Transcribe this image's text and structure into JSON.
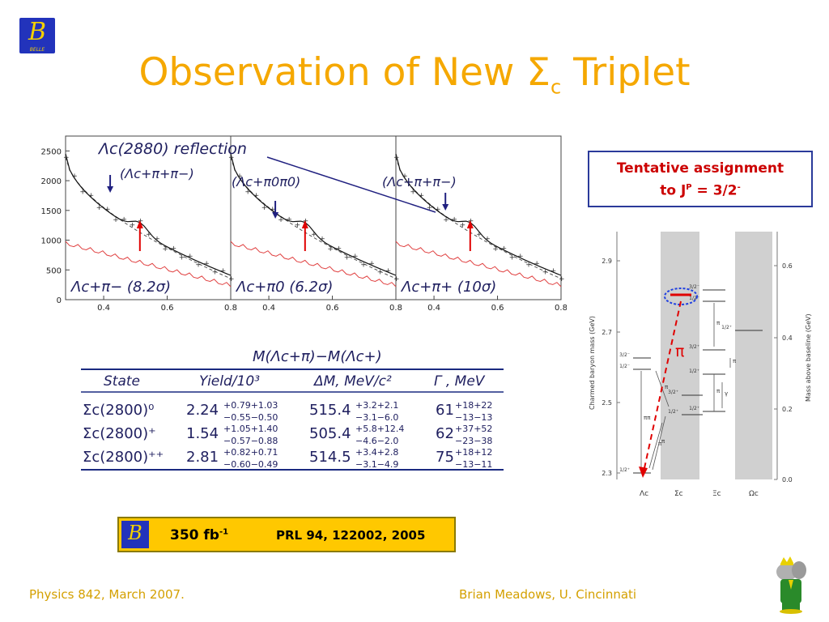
{
  "slide": {
    "title_main": "Observation of New Σ",
    "title_sub": "c",
    "title_tail": " Triplet",
    "logo_text": "BELLE",
    "footer_left": "Physics 842, March 2007.",
    "footer_right": "Brian Meadows, U. Cincinnati"
  },
  "plots": {
    "y_ticks": [
      "2500",
      "2000",
      "1500",
      "1000",
      "500",
      "0"
    ],
    "x_ticks": [
      "0.4",
      "0.6",
      "0.8"
    ],
    "reflection_label": "Λc(2880) reflection",
    "panels": [
      {
        "reflection_channel": "(Λc+π+π−)",
        "fit_label": "Λc+π− (8.2σ)"
      },
      {
        "reflection_channel": "(Λc+π0π0)",
        "fit_label": "Λc+π0 (6.2σ)"
      },
      {
        "reflection_channel": "(Λc+π+π−)",
        "fit_label": "Λc+π+ (10σ)"
      }
    ]
  },
  "table": {
    "header_title": "M(Λc+π)−M(Λc+)",
    "columns": [
      "State",
      "Yield/10³",
      "ΔM, MeV/c²",
      "Γ , MeV"
    ],
    "rows": [
      {
        "state": "Σc(2800)⁰",
        "yield": "2.24",
        "yield_up": "+0.79+1.03",
        "yield_dn": "−0.55−0.50",
        "dm": "515.4",
        "dm_up": "+3.2+2.1",
        "dm_dn": "−3.1−6.0",
        "gamma": "61",
        "gamma_up": "+18+22",
        "gamma_dn": "−13−13"
      },
      {
        "state": "Σc(2800)⁺",
        "yield": "1.54",
        "yield_up": "+1.05+1.40",
        "yield_dn": "−0.57−0.88",
        "dm": "505.4",
        "dm_up": "+5.8+12.4",
        "dm_dn": "−4.6−2.0",
        "gamma": "62",
        "gamma_up": "+37+52",
        "gamma_dn": "−23−38"
      },
      {
        "state": "Σc(2800)⁺⁺",
        "yield": "2.81",
        "yield_up": "+0.82+0.71",
        "yield_dn": "−0.60−0.49",
        "dm": "514.5",
        "dm_up": "+3.4+2.8",
        "dm_dn": "−3.1−4.9",
        "gamma": "75",
        "gamma_up": "+18+12",
        "gamma_dn": "−13−11"
      }
    ]
  },
  "assignment": {
    "line1": "Tentative assignment",
    "line2": "to J",
    "sup": "P",
    "line2_tail": " = 3/2",
    "sup2": "-"
  },
  "level_diagram": {
    "left_axis_label": "Charmed baryon mass  (GeV)",
    "right_axis_label": "Mass above baseline  (GeV)",
    "left_ticks": [
      "2.9",
      "2.7",
      "2.5",
      "2.3"
    ],
    "right_ticks": [
      "0.6",
      "0.4",
      "0.2",
      "0.0"
    ],
    "columns": [
      "Λc",
      "Σc",
      "Ξc",
      "Ωc"
    ],
    "pi_label": "π",
    "levels": [
      "3/2⁻",
      "1/2⁻",
      "3/2⁻",
      "1/2⁻",
      "3/2⁺",
      "1/2⁺",
      "1/2⁺",
      "3/2⁺",
      "1/2⁺",
      "3/2⁻",
      "1/2⁻",
      "1/2⁺"
    ],
    "transitions": [
      "π",
      "π",
      "π",
      "ππ",
      "π",
      "π",
      "γ",
      "π"
    ]
  },
  "banner": {
    "lumi": "350 fb",
    "lumi_sup": "-1",
    "reference": "PRL 94, 122002, 2005"
  }
}
